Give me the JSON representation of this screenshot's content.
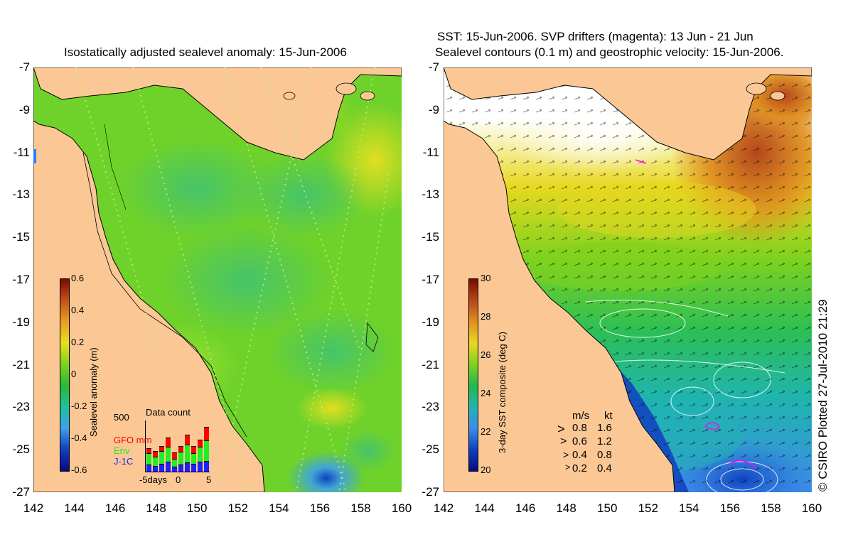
{
  "left": {
    "title": "Isostatically adjusted sealevel anomaly: 15-Jun-2006",
    "colorbar": {
      "label": "Sealevel anomaly (m)",
      "ticks": [
        "0.6",
        "0.4",
        "0.2",
        "0",
        "-0.2",
        "-0.4",
        "-0.6"
      ],
      "colors": [
        "#7a0a00",
        "#c4501a",
        "#e8a020",
        "#e8e020",
        "#7ed21e",
        "#2ab83a",
        "#20c0a0",
        "#3ca0e8",
        "#1040c0",
        "#0a0a80"
      ]
    },
    "data_count": {
      "title": "Data count",
      "ymax_label": "500",
      "legend": [
        "GFO mm",
        "Env",
        "J-1C"
      ],
      "legend_colors": [
        "#ff0000",
        "#22ee22",
        "#2020ff"
      ],
      "xticks": [
        "-5days",
        "0",
        "5"
      ],
      "bars": [
        {
          "j1c": 60,
          "env": 110,
          "gfo": 40
        },
        {
          "j1c": 50,
          "env": 80,
          "gfo": 50
        },
        {
          "j1c": 70,
          "env": 120,
          "gfo": 40
        },
        {
          "j1c": 90,
          "env": 140,
          "gfo": 80
        },
        {
          "j1c": 40,
          "env": 70,
          "gfo": 60
        },
        {
          "j1c": 60,
          "env": 120,
          "gfo": 50
        },
        {
          "j1c": 80,
          "env": 170,
          "gfo": 90
        },
        {
          "j1c": 70,
          "env": 100,
          "gfo": 60
        },
        {
          "j1c": 90,
          "env": 140,
          "gfo": 60
        },
        {
          "j1c": 100,
          "env": 190,
          "gfo": 130
        }
      ]
    }
  },
  "right": {
    "title_line1": "SST: 15-Jun-2006. SVP drifters (magenta): 13 Jun - 21 Jun",
    "title_line2": "Sealevel contours (0.1 m) and geostrophic velocity: 15-Jun-2006.",
    "colorbar": {
      "label": "3-day SST composite (deg C)",
      "ticks": [
        "30",
        "28",
        "26",
        "24",
        "22",
        "20"
      ],
      "colors": [
        "#7a0a00",
        "#b4461a",
        "#e09020",
        "#e8d820",
        "#7ed21e",
        "#22b84a",
        "#20b4b0",
        "#3c8ce8",
        "#1040c0",
        "#0a0a80"
      ]
    },
    "velocity_legend": {
      "header_ms": "m/s",
      "header_kt": "kt",
      "rows": [
        {
          "ms": "0.8",
          "kt": "1.6"
        },
        {
          "ms": "0.6",
          "kt": "1.2"
        },
        {
          "ms": "0.4",
          "kt": "0.8"
        },
        {
          "ms": "0.2",
          "kt": "0.4"
        }
      ]
    },
    "credit": "© CSIRO Plotted 27-Jul-2010 21:29"
  },
  "axes": {
    "lat_ticks": [
      "-7",
      "-9",
      "-11",
      "-13",
      "-15",
      "-17",
      "-19",
      "-21",
      "-23",
      "-25",
      "-27"
    ],
    "lon_ticks": [
      "142",
      "144",
      "146",
      "148",
      "150",
      "152",
      "154",
      "156",
      "158",
      "160"
    ]
  },
  "colors": {
    "land": "#fbc895",
    "ocean_left": "#6fd22a",
    "ocean_right": "#2cbf55"
  }
}
